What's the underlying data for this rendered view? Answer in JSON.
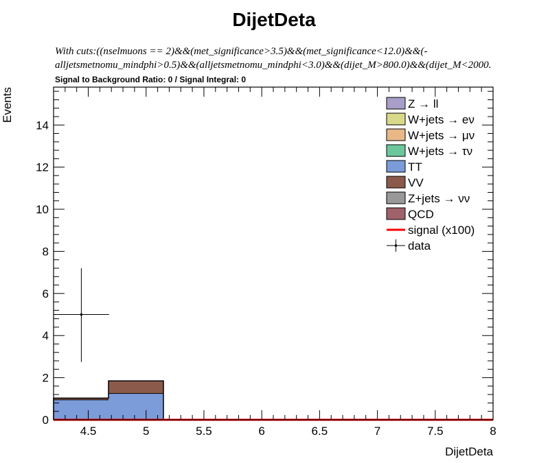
{
  "chart_data": {
    "type": "bar",
    "title": "DijetDeta",
    "cuts_line1": "With cuts:((nselmuons == 2)&&(met_significance>3.5)&&(met_significance<12.0)&&(-",
    "cuts_line2": "alljetsmetnomu_mindphi>0.5)&&(alljetsmetnomu_mindphi<3.0)&&(dijet_M>800.0)&&(dijet_M<2000.",
    "ratio_text": "Signal to Background Ratio: 0 / Signal Integral: 0",
    "xlabel": "DijetDeta",
    "ylabel": "Events",
    "xlim": [
      4.2,
      8.0
    ],
    "ylim": [
      0,
      15.8
    ],
    "x_ticks": [
      "4.5",
      "5",
      "5.5",
      "6",
      "6.5",
      "7",
      "7.5",
      "8"
    ],
    "x_tick_values": [
      4.5,
      5.0,
      5.5,
      6.0,
      6.5,
      7.0,
      7.5,
      8.0
    ],
    "y_ticks": [
      "0",
      "2",
      "4",
      "6",
      "8",
      "10",
      "12",
      "14"
    ],
    "y_tick_values": [
      0,
      2,
      4,
      6,
      8,
      10,
      12,
      14
    ],
    "bin_edges": [
      4.2,
      4.675,
      5.15,
      5.625,
      6.1,
      6.575,
      7.05,
      7.525,
      8.0
    ],
    "stack": [
      {
        "name": "TT",
        "color": "#7b9bd9",
        "values": [
          0.95,
          1.25,
          0,
          0,
          0,
          0,
          0,
          0
        ]
      },
      {
        "name": "VV",
        "color": "#8b5a4a",
        "values": [
          0.08,
          0.6,
          0,
          0,
          0,
          0,
          0,
          0
        ]
      }
    ],
    "signal": {
      "name": "signal (x100)",
      "color": "#ff0000",
      "values": [
        0,
        0,
        0,
        0,
        0,
        0,
        0,
        0
      ]
    },
    "data_points": [
      {
        "x": 4.44,
        "y": 5.0,
        "yerr_low": 2.25,
        "yerr_high": 2.2,
        "xerr": 0.24
      }
    ],
    "legend": [
      {
        "label": "Z → ll",
        "color": "#a89ec8",
        "kind": "box"
      },
      {
        "label": "W+jets → eν",
        "color": "#d9d98a",
        "kind": "box"
      },
      {
        "label": "W+jets → μν",
        "color": "#e8b888",
        "kind": "box"
      },
      {
        "label": "W+jets → τν",
        "color": "#6cc79c",
        "kind": "box"
      },
      {
        "label": "TT",
        "color": "#7b9bd9",
        "kind": "box"
      },
      {
        "label": "VV",
        "color": "#8b5a4a",
        "kind": "box"
      },
      {
        "label": "Z+jets → νν",
        "color": "#999999",
        "kind": "box"
      },
      {
        "label": "QCD",
        "color": "#a0626a",
        "kind": "box"
      },
      {
        "label": "signal (x100)",
        "color": "#ff0000",
        "kind": "line"
      },
      {
        "label": "data",
        "color": "#000000",
        "kind": "marker"
      }
    ],
    "legend_placement": "top-right",
    "grid": false
  }
}
